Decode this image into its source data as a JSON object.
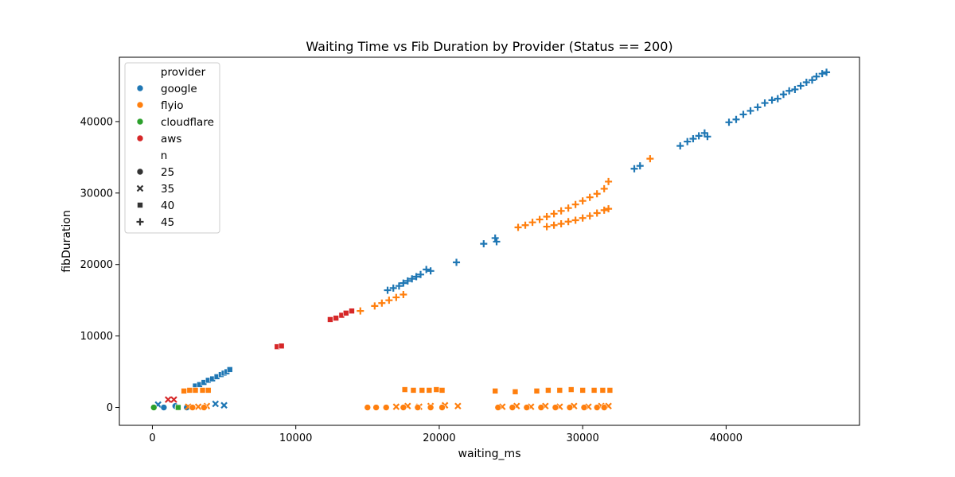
{
  "chart_data": {
    "type": "scatter",
    "title": "Waiting Time vs Fib Duration by Provider (Status == 200)",
    "xlabel": "waiting_ms",
    "ylabel": "fibDuration",
    "xlim": [
      -2300,
      49300
    ],
    "ylim": [
      -2500,
      49000
    ],
    "xticks": [
      0,
      10000,
      20000,
      30000,
      40000
    ],
    "yticks": [
      0,
      10000,
      20000,
      30000,
      40000
    ],
    "xtick_labels": [
      "0",
      "10000",
      "20000",
      "30000",
      "40000"
    ],
    "ytick_labels": [
      "0",
      "10000",
      "20000",
      "30000",
      "40000"
    ],
    "grid": false,
    "legend": {
      "placement": "top-left",
      "hue_title": "provider",
      "style_title": "n",
      "hue_entries": [
        {
          "label": "google",
          "color": "#1f77b4"
        },
        {
          "label": "flyio",
          "color": "#ff7f0e"
        },
        {
          "label": "cloudflare",
          "color": "#2ca02c"
        },
        {
          "label": "aws",
          "color": "#d62728"
        }
      ],
      "style_entries": [
        {
          "label": "25",
          "marker": "circle"
        },
        {
          "label": "35",
          "marker": "x"
        },
        {
          "label": "40",
          "marker": "square"
        },
        {
          "label": "45",
          "marker": "plus"
        }
      ]
    },
    "series": [
      {
        "provider": "google",
        "n": 45,
        "color": "#1f77b4",
        "marker": "plus",
        "points": [
          [
            16400,
            16400
          ],
          [
            16800,
            16700
          ],
          [
            17200,
            17000
          ],
          [
            17500,
            17400
          ],
          [
            17800,
            17700
          ],
          [
            18100,
            18000
          ],
          [
            18400,
            18300
          ],
          [
            18700,
            18600
          ],
          [
            19100,
            19300
          ],
          [
            19400,
            19100
          ],
          [
            21200,
            20300
          ],
          [
            23100,
            22900
          ],
          [
            23900,
            23700
          ],
          [
            24000,
            23200
          ],
          [
            33600,
            33400
          ],
          [
            34000,
            33800
          ],
          [
            36800,
            36600
          ],
          [
            37300,
            37200
          ],
          [
            37700,
            37600
          ],
          [
            38100,
            38000
          ],
          [
            38500,
            38400
          ],
          [
            38700,
            37900
          ],
          [
            40200,
            39900
          ],
          [
            40700,
            40300
          ],
          [
            41200,
            41000
          ],
          [
            41700,
            41500
          ],
          [
            42200,
            42000
          ],
          [
            42700,
            42600
          ],
          [
            43200,
            43000
          ],
          [
            43600,
            43200
          ],
          [
            44000,
            43800
          ],
          [
            44400,
            44300
          ],
          [
            44800,
            44500
          ],
          [
            45200,
            45000
          ],
          [
            45600,
            45500
          ],
          [
            46000,
            45800
          ],
          [
            46300,
            46300
          ],
          [
            46700,
            46700
          ],
          [
            47000,
            46900
          ]
        ]
      },
      {
        "provider": "google",
        "n": 40,
        "color": "#1f77b4",
        "marker": "square",
        "points": [
          [
            3000,
            3000
          ],
          [
            3300,
            3200
          ],
          [
            3600,
            3500
          ],
          [
            3900,
            3800
          ],
          [
            4200,
            4000
          ],
          [
            4500,
            4300
          ],
          [
            4800,
            4600
          ],
          [
            5000,
            4800
          ],
          [
            5200,
            5000
          ],
          [
            5400,
            5300
          ]
        ]
      },
      {
        "provider": "google",
        "n": 35,
        "color": "#1f77b4",
        "marker": "x",
        "points": [
          [
            400,
            400
          ],
          [
            4400,
            500
          ],
          [
            5000,
            300
          ]
        ]
      },
      {
        "provider": "google",
        "n": 25,
        "color": "#1f77b4",
        "marker": "circle",
        "points": [
          [
            800,
            0
          ],
          [
            1600,
            200
          ],
          [
            2400,
            0
          ]
        ]
      },
      {
        "provider": "flyio",
        "n": 45,
        "color": "#ff7f0e",
        "marker": "plus",
        "points": [
          [
            14500,
            13500
          ],
          [
            15500,
            14200
          ],
          [
            16000,
            14600
          ],
          [
            16500,
            15000
          ],
          [
            17000,
            15400
          ],
          [
            17500,
            15800
          ],
          [
            25500,
            25200
          ],
          [
            26000,
            25500
          ],
          [
            26500,
            25900
          ],
          [
            27000,
            26300
          ],
          [
            27500,
            26700
          ],
          [
            28000,
            27100
          ],
          [
            28500,
            27500
          ],
          [
            29000,
            27900
          ],
          [
            29500,
            28400
          ],
          [
            30000,
            28900
          ],
          [
            30500,
            29400
          ],
          [
            31000,
            29900
          ],
          [
            31500,
            30600
          ],
          [
            27500,
            25300
          ],
          [
            28000,
            25500
          ],
          [
            28500,
            25700
          ],
          [
            29000,
            26000
          ],
          [
            29500,
            26200
          ],
          [
            30000,
            26500
          ],
          [
            30500,
            26800
          ],
          [
            31000,
            27200
          ],
          [
            31500,
            27600
          ],
          [
            31800,
            27800
          ],
          [
            31800,
            31600
          ],
          [
            34700,
            34800
          ]
        ]
      },
      {
        "provider": "flyio",
        "n": 40,
        "color": "#ff7f0e",
        "marker": "square",
        "points": [
          [
            2200,
            2300
          ],
          [
            2600,
            2400
          ],
          [
            3000,
            2400
          ],
          [
            3500,
            2400
          ],
          [
            3900,
            2400
          ],
          [
            17600,
            2500
          ],
          [
            18200,
            2400
          ],
          [
            18800,
            2400
          ],
          [
            19300,
            2400
          ],
          [
            19800,
            2500
          ],
          [
            20200,
            2400
          ],
          [
            23900,
            2300
          ],
          [
            25300,
            2200
          ],
          [
            26800,
            2300
          ],
          [
            27600,
            2400
          ],
          [
            28400,
            2400
          ],
          [
            29200,
            2500
          ],
          [
            30000,
            2400
          ],
          [
            30800,
            2400
          ],
          [
            31400,
            2400
          ],
          [
            31900,
            2400
          ]
        ]
      },
      {
        "provider": "flyio",
        "n": 35,
        "color": "#ff7f0e",
        "marker": "x",
        "points": [
          [
            2500,
            100
          ],
          [
            3200,
            100
          ],
          [
            3800,
            200
          ],
          [
            17000,
            100
          ],
          [
            17800,
            200
          ],
          [
            18600,
            100
          ],
          [
            19400,
            200
          ],
          [
            20400,
            300
          ],
          [
            21300,
            200
          ],
          [
            24400,
            100
          ],
          [
            25400,
            200
          ],
          [
            26400,
            100
          ],
          [
            27400,
            200
          ],
          [
            28400,
            100
          ],
          [
            29400,
            200
          ],
          [
            30400,
            100
          ],
          [
            31300,
            200
          ],
          [
            31800,
            200
          ]
        ]
      },
      {
        "provider": "flyio",
        "n": 25,
        "color": "#ff7f0e",
        "marker": "circle",
        "points": [
          [
            1800,
            0
          ],
          [
            2800,
            0
          ],
          [
            3600,
            0
          ],
          [
            15000,
            0
          ],
          [
            15600,
            0
          ],
          [
            16300,
            0
          ],
          [
            17500,
            0
          ],
          [
            18500,
            0
          ],
          [
            19400,
            0
          ],
          [
            20200,
            0
          ],
          [
            24100,
            0
          ],
          [
            25100,
            0
          ],
          [
            26100,
            0
          ],
          [
            27100,
            0
          ],
          [
            28100,
            0
          ],
          [
            29100,
            0
          ],
          [
            30100,
            0
          ],
          [
            31000,
            0
          ],
          [
            31500,
            0
          ]
        ]
      },
      {
        "provider": "cloudflare",
        "n": 25,
        "color": "#2ca02c",
        "marker": "circle",
        "points": [
          [
            100,
            0
          ]
        ]
      },
      {
        "provider": "cloudflare",
        "n": 40,
        "color": "#2ca02c",
        "marker": "square",
        "points": [
          [
            1800,
            0
          ]
        ]
      },
      {
        "provider": "aws",
        "n": 40,
        "color": "#d62728",
        "marker": "square",
        "points": [
          [
            8700,
            8500
          ],
          [
            9000,
            8600
          ],
          [
            12400,
            12300
          ],
          [
            12800,
            12500
          ],
          [
            13200,
            12900
          ],
          [
            13500,
            13200
          ],
          [
            13900,
            13500
          ]
        ]
      },
      {
        "provider": "aws",
        "n": 35,
        "color": "#d62728",
        "marker": "x",
        "points": [
          [
            1100,
            1100
          ],
          [
            1500,
            1100
          ]
        ]
      }
    ]
  }
}
